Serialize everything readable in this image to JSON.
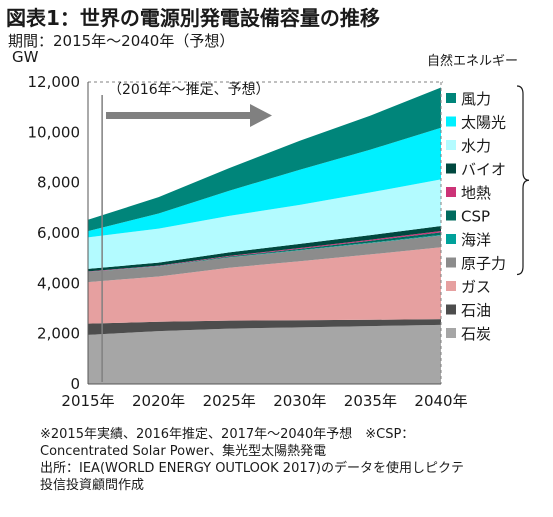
{
  "title": "図表1：世界の電源別発電設備容量の推移",
  "subtitle": "期間：2015年～2040年（予想）",
  "unit": "GW",
  "legend_group_title": "自然エネルギー",
  "annotation": "（2016年～推定、予想）",
  "notes": [
    "※2015年実績、2016年推定、2017年～2040年予想　※CSP：",
    "Concentrated Solar Power、集光型太陽熱発電",
    "出所：IEA(WORLD ENERGY OUTLOOK 2017)のデータを使用しピクテ",
    "投信投資顧問作成"
  ],
  "chart_data": {
    "type": "area",
    "stacked": true,
    "title": "図表1：世界の電源別発電設備容量の推移",
    "ylabel": "GW",
    "x": [
      "2015年",
      "2020年",
      "2025年",
      "2030年",
      "2035年",
      "2040年"
    ],
    "ylim": [
      0,
      12000
    ],
    "yticks": [
      "0",
      "2,000",
      "4,000",
      "6,000",
      "8,000",
      "10,000",
      "12,000"
    ],
    "grid": false,
    "legend_position": "right",
    "series": [
      {
        "name": "石炭",
        "color": "#a6a6a6",
        "values": [
          1950,
          2100,
          2200,
          2250,
          2300,
          2350
        ]
      },
      {
        "name": "石油",
        "color": "#4d4d4d",
        "values": [
          450,
          370,
          320,
          280,
          250,
          230
        ]
      },
      {
        "name": "ガス",
        "color": "#e6a0a0",
        "values": [
          1650,
          1800,
          2100,
          2350,
          2600,
          2850
        ]
      },
      {
        "name": "原子力",
        "color": "#8c8c8c",
        "values": [
          400,
          400,
          410,
          430,
          450,
          470
        ]
      },
      {
        "name": "海洋",
        "color": "#00a19a",
        "values": [
          5,
          5,
          10,
          15,
          20,
          25
        ]
      },
      {
        "name": "CSP",
        "color": "#006b5e",
        "values": [
          5,
          10,
          25,
          45,
          70,
          100
        ]
      },
      {
        "name": "地熱",
        "color": "#cc3377",
        "values": [
          15,
          20,
          25,
          35,
          45,
          55
        ]
      },
      {
        "name": "バイオ",
        "color": "#00483f",
        "values": [
          100,
          120,
          140,
          160,
          180,
          200
        ]
      },
      {
        "name": "水力",
        "color": "#b3fbff",
        "values": [
          1250,
          1350,
          1450,
          1550,
          1700,
          1850
        ]
      },
      {
        "name": "太陽光",
        "color": "#00f0ff",
        "values": [
          250,
          600,
          1000,
          1400,
          1700,
          2050
        ]
      },
      {
        "name": "風力",
        "color": "#00857a",
        "values": [
          450,
          650,
          900,
          1150,
          1350,
          1600
        ]
      }
    ]
  }
}
